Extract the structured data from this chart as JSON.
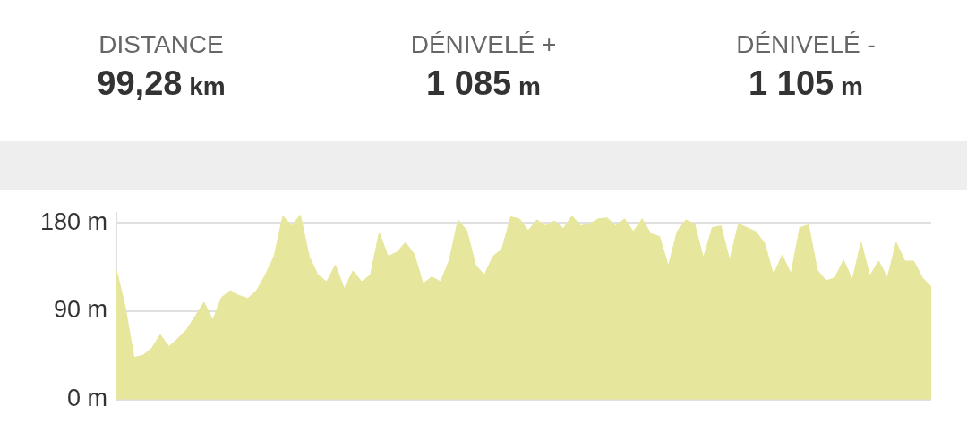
{
  "chart_data": {
    "type": "area",
    "annotations": [
      "DISTANCE",
      "99,28 km",
      "DÉNIVELÉ +",
      "1 085 m",
      "DÉNIVELÉ -",
      "1 105 m"
    ],
    "categories": [
      null,
      null,
      null,
      null,
      null,
      null,
      null,
      null,
      null,
      null,
      null,
      null,
      null,
      null,
      null,
      null,
      null,
      null,
      null,
      null,
      null,
      null,
      null,
      null,
      null,
      null,
      null,
      null,
      null,
      null,
      null,
      null,
      null,
      null,
      null,
      null,
      null,
      null,
      null,
      null,
      null,
      null,
      null,
      null,
      null,
      null,
      null,
      null,
      null,
      null,
      null,
      null,
      null,
      null,
      null,
      null,
      null,
      null,
      null,
      null,
      null,
      null,
      null,
      null,
      null,
      null,
      null,
      null,
      null,
      null,
      null,
      null,
      null,
      null,
      null,
      null,
      null,
      null,
      null,
      null,
      null,
      null,
      null,
      null,
      null,
      null,
      null,
      null,
      null,
      null,
      null,
      null,
      null,
      null
    ],
    "series": [
      {
        "color": "#e6e69c",
        "values": [
          132,
          95,
          43,
          45,
          52,
          66,
          54,
          62,
          71,
          85,
          99,
          81,
          104,
          111,
          106,
          103,
          111,
          127,
          146,
          187,
          177,
          188,
          146,
          127,
          120,
          137,
          113,
          131,
          120,
          127,
          170,
          146,
          150,
          160,
          148,
          118,
          125,
          120,
          142,
          183,
          172,
          137,
          127,
          146,
          153,
          186,
          184,
          172,
          183,
          177,
          182,
          174,
          187,
          177,
          179,
          184,
          185,
          177,
          184,
          171,
          184,
          169,
          166,
          136,
          171,
          183,
          179,
          144,
          175,
          177,
          142,
          179,
          175,
          171,
          159,
          127,
          147,
          128,
          175,
          178,
          132,
          121,
          124,
          142,
          122,
          160,
          126,
          141,
          124,
          160,
          141,
          141,
          124,
          115
        ]
      }
    ],
    "ylim": [
      0,
      190
    ],
    "yticks": [
      {
        "value": 0,
        "label": "0 m"
      },
      {
        "value": 90,
        "label": "90 m"
      },
      {
        "value": 180,
        "label": "180 m"
      }
    ],
    "grid": "y",
    "legend": false,
    "tick_labels": "y"
  }
}
